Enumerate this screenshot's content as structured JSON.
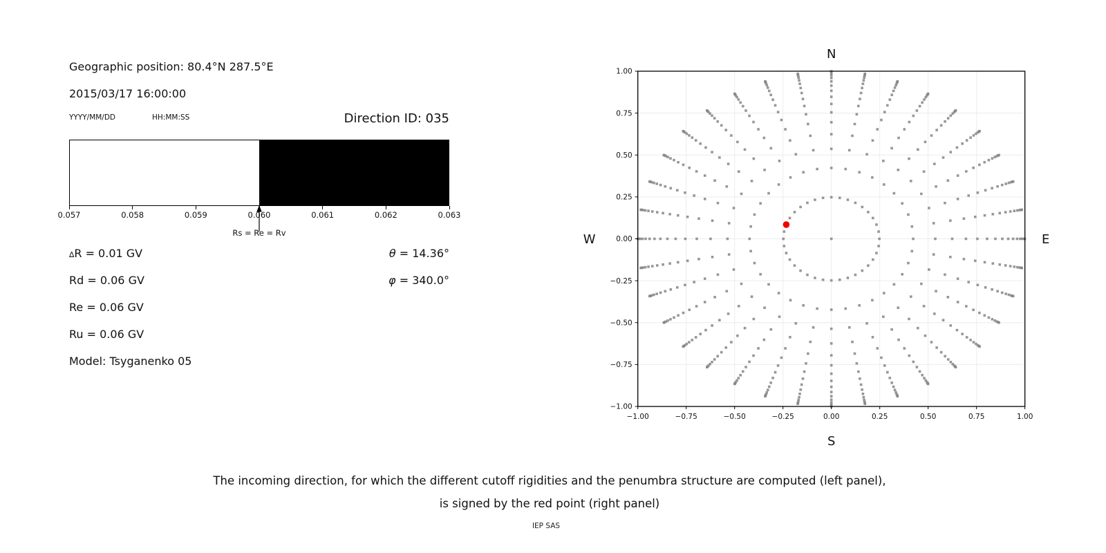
{
  "header": {
    "geo_position": "Geographic position: 80.4°N 287.5°E",
    "datetime": "2015/03/17 16:00:00",
    "date_format": "YYYY/MM/DD",
    "time_format": "HH:MM:SS",
    "direction_id": "Direction ID: 035"
  },
  "params": {
    "delta_symbol": "∆",
    "delta_rest": "R = 0.01 GV",
    "rd": "Rd = 0.06 GV",
    "re": "Re = 0.06 GV",
    "ru": "Ru = 0.06 GV",
    "model": "Model: Tsyganenko 05",
    "theta_symbol": "θ",
    "theta_rest": " = 14.36°",
    "phi_symbol": "φ",
    "phi_rest": " = 340.0°"
  },
  "caption": {
    "line1": "The incoming direction, for which the different cutoff rigidities and the penumbra structure are computed (left panel),",
    "line2": "is signed by the red point (right panel)",
    "credit": "IEP SAS"
  },
  "chart_data": [
    {
      "id": "penumbra-structure",
      "type": "bar",
      "units": "GV",
      "xlim": [
        0.057,
        0.063
      ],
      "xtick_values": [
        0.057,
        0.058,
        0.059,
        0.06,
        0.061,
        0.062,
        0.063
      ],
      "xticks": [
        "0.057",
        "0.058",
        "0.059",
        "0.060",
        "0.061",
        "0.062",
        "0.063"
      ],
      "segments": [
        {
          "x0": 0.057,
          "x1": 0.06,
          "color": "#ffffff",
          "meaning": "allowed band"
        },
        {
          "x0": 0.06,
          "x1": 0.063,
          "color": "#000000",
          "meaning": "forbidden band"
        }
      ],
      "annotation": {
        "x": 0.06,
        "label": "Rs = Re = Rv"
      }
    },
    {
      "id": "incoming-directions",
      "type": "scatter",
      "xlim": [
        -1,
        1
      ],
      "ylim": [
        -1,
        1
      ],
      "xtick_values": [
        -1,
        -0.75,
        -0.5,
        -0.25,
        0,
        0.25,
        0.5,
        0.75,
        1
      ],
      "xticks": [
        "−1.00",
        "−0.75",
        "−0.50",
        "−0.25",
        "0.00",
        "0.25",
        "0.50",
        "0.75",
        "1.00"
      ],
      "ytick_values": [
        -1,
        -0.75,
        -0.5,
        -0.25,
        0,
        0.25,
        0.5,
        0.75,
        1
      ],
      "yticks": [
        "−1.00",
        "−0.75",
        "−0.50",
        "−0.25",
        "0.00",
        "0.25",
        "0.50",
        "0.75",
        "1.00"
      ],
      "grid": true,
      "grid_color": "#ececec",
      "compass": {
        "top": "N",
        "bottom": "S",
        "left": "W",
        "right": "E"
      },
      "dot_color": "#858585",
      "selected_color": "#f00000",
      "azimuth_deg": {
        "start": 0,
        "step": 10,
        "count": 36
      },
      "n_zenith_levels": 16,
      "zenith_cosines_rule": "cos(theta_m) = 1 - (2m-1)/32, m = 1..16",
      "projection": "x = -sin(theta)*cos(phi), y = -sin(theta)*sin(phi)",
      "has_center_point": true,
      "selected_point": {
        "phi_deg": 340,
        "theta_deg": 14.36
      }
    }
  ]
}
